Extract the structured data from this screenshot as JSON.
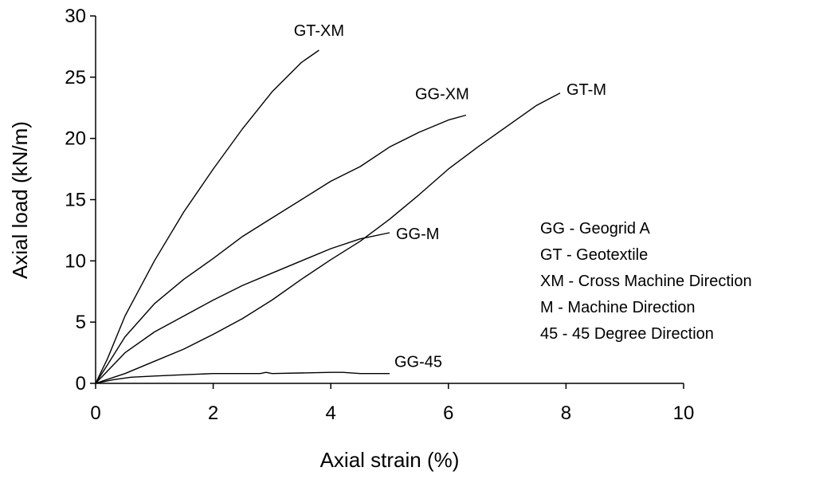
{
  "chart_data": {
    "type": "line",
    "title": "",
    "xlabel": "Axial strain (%)",
    "ylabel": "Axial load (kN/m)",
    "xlim": [
      0,
      10
    ],
    "ylim": [
      0,
      30
    ],
    "x_ticks": [
      "0",
      "2",
      "4",
      "6",
      "8",
      "10"
    ],
    "y_ticks": [
      "0",
      "5",
      "10",
      "15",
      "20",
      "25",
      "30"
    ],
    "grid": false,
    "series": [
      {
        "name": "GT-XM",
        "x": [
          0,
          0.2,
          0.5,
          1.0,
          1.5,
          2.0,
          2.5,
          3.0,
          3.5,
          3.8
        ],
        "y": [
          0,
          2.0,
          5.5,
          10.0,
          14.0,
          17.5,
          20.8,
          23.8,
          26.2,
          27.2
        ]
      },
      {
        "name": "GG-XM",
        "x": [
          0,
          0.2,
          0.5,
          1.0,
          1.5,
          2.0,
          2.5,
          3.0,
          3.5,
          4.0,
          4.5,
          5.0,
          5.5,
          6.0,
          6.3
        ],
        "y": [
          0,
          1.5,
          3.8,
          6.5,
          8.5,
          10.2,
          12.0,
          13.5,
          15.0,
          16.5,
          17.7,
          19.3,
          20.5,
          21.5,
          21.9
        ]
      },
      {
        "name": "GT-M",
        "x": [
          0,
          0.5,
          1.0,
          1.5,
          2.0,
          2.5,
          3.0,
          3.5,
          4.0,
          4.5,
          5.0,
          5.5,
          6.0,
          6.5,
          7.0,
          7.5,
          7.9
        ],
        "y": [
          0,
          0.8,
          1.8,
          2.8,
          4.0,
          5.3,
          6.8,
          8.5,
          10.1,
          11.6,
          13.4,
          15.4,
          17.5,
          19.3,
          21.0,
          22.7,
          23.7
        ]
      },
      {
        "name": "GG-M",
        "x": [
          0,
          0.2,
          0.5,
          1.0,
          1.5,
          2.0,
          2.5,
          3.0,
          3.5,
          4.0,
          4.5,
          5.0
        ],
        "y": [
          0,
          1.0,
          2.5,
          4.2,
          5.5,
          6.8,
          8.0,
          9.0,
          10.0,
          11.0,
          11.8,
          12.3
        ]
      },
      {
        "name": "GG-45",
        "x": [
          0,
          0.3,
          0.6,
          1.0,
          1.5,
          2.0,
          2.8,
          2.9,
          3.0,
          4.0,
          4.2,
          4.5,
          5.0
        ],
        "y": [
          0,
          0.3,
          0.5,
          0.6,
          0.7,
          0.8,
          0.8,
          0.9,
          0.8,
          0.9,
          0.9,
          0.8,
          0.8
        ]
      }
    ],
    "legend": [
      "GG - Geogrid A",
      "GT - Geotextile",
      "XM - Cross Machine Direction",
      "M - Machine Direction",
      "45 - 45 Degree Direction"
    ],
    "legend_position": "right"
  }
}
